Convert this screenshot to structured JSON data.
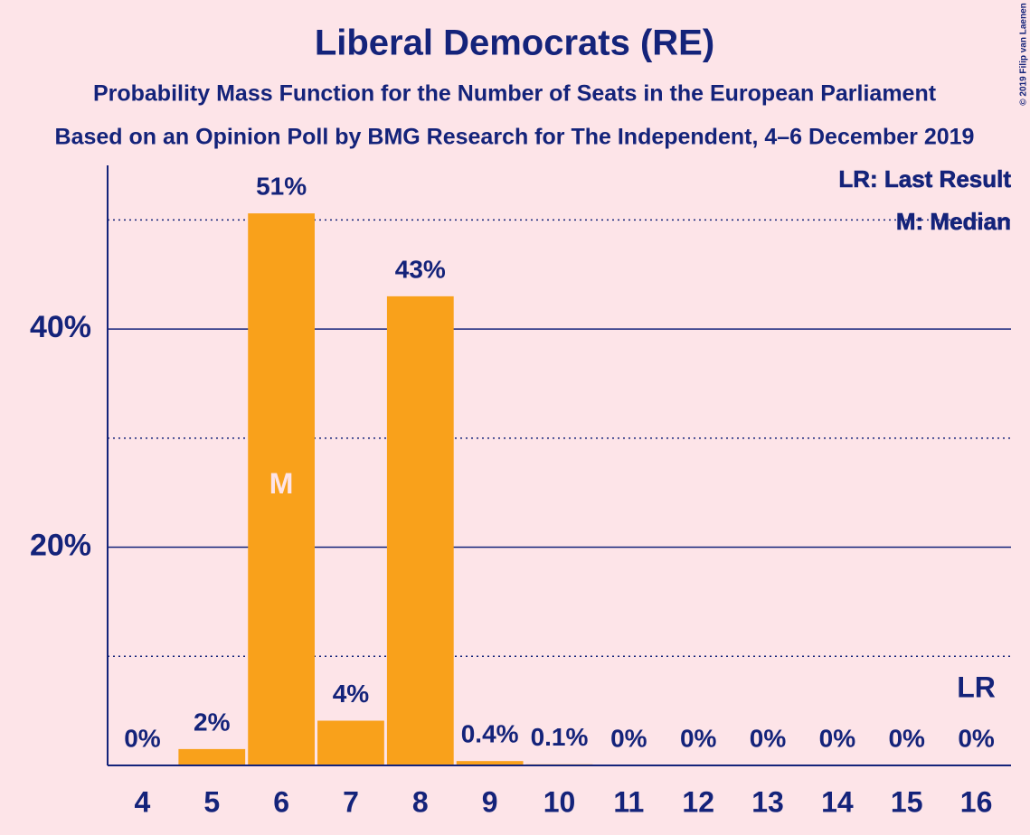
{
  "chart_data": {
    "type": "bar",
    "title": "Liberal Democrats (RE)",
    "subtitle": "Probability Mass Function for the Number of Seats in the European Parliament",
    "subtitle2": "Based on an Opinion Poll by BMG Research for The Independent, 4–6 December 2019",
    "copyright": "© 2019 Filip van Laenen",
    "categories": [
      "4",
      "5",
      "6",
      "7",
      "8",
      "9",
      "10",
      "11",
      "12",
      "13",
      "14",
      "15",
      "16"
    ],
    "values": [
      0,
      1.5,
      50.6,
      4.1,
      43.0,
      0.4,
      0.1,
      0,
      0,
      0,
      0,
      0,
      0
    ],
    "value_labels": [
      "0%",
      "2%",
      "51%",
      "4%",
      "43%",
      "0.4%",
      "0.1%",
      "0%",
      "0%",
      "0%",
      "0%",
      "0%",
      "0%"
    ],
    "color": "#f9a11b",
    "ylim": [
      0,
      55
    ],
    "yticks": [
      {
        "value": 20,
        "label": "20%"
      },
      {
        "value": 40,
        "label": "40%"
      }
    ],
    "minor_yticks": [
      10,
      30,
      50
    ],
    "grid": true,
    "median": "6",
    "median_label": "M",
    "last_result": "16",
    "last_result_label": "LR",
    "legend": [
      "LR: Last Result",
      "M: Median"
    ],
    "legend_position": "upper right"
  }
}
